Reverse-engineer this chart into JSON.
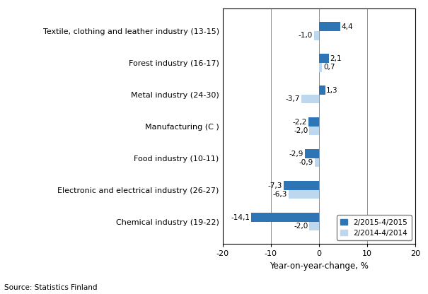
{
  "categories": [
    "Chemical industry (19-22)",
    "Electronic and electrical industry (26-27)",
    "Food industry (10-11)",
    "Manufacturing (C )",
    "Metal industry (24-30)",
    "Forest industry (16-17)",
    "Textile, clothing and leather industry (13-15)"
  ],
  "series_2015": [
    -14.1,
    -7.3,
    -2.9,
    -2.2,
    1.3,
    2.1,
    4.4
  ],
  "series_2014": [
    -2.0,
    -6.3,
    -0.9,
    -2.0,
    -3.7,
    0.7,
    -1.0
  ],
  "color_2015": "#2e75b6",
  "color_2014": "#bdd7ee",
  "xlabel": "Year-on-year-change, %",
  "xlim": [
    -20,
    20
  ],
  "xticks": [
    -20,
    -10,
    0,
    10,
    20
  ],
  "legend_2015": "2/2015-4/2015",
  "legend_2014": "2/2014-4/2014",
  "source": "Source: Statistics Finland",
  "bar_height": 0.28,
  "figsize": [
    6.05,
    4.16
  ],
  "dpi": 100
}
